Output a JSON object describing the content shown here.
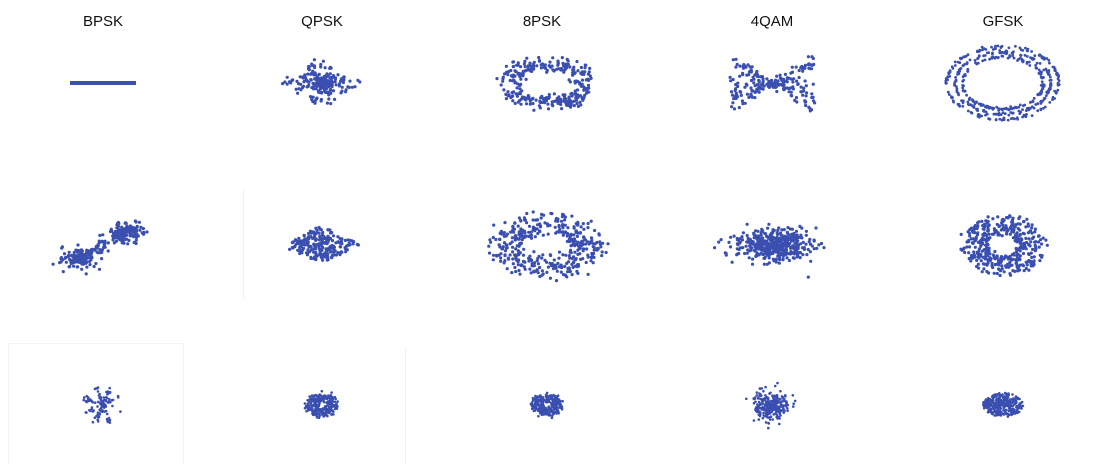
{
  "figure": {
    "columns": [
      "BPSK",
      "QPSK",
      "8PSK",
      "4QAM",
      "GFSK"
    ],
    "rows": 3,
    "point_color": "#3a4fb0",
    "panels": [
      [
        {
          "shape": "line"
        },
        {
          "shape": "cross-diamond"
        },
        {
          "shape": "swirl-ring"
        },
        {
          "shape": "bowtie"
        },
        {
          "shape": "concentric-ellipses"
        }
      ],
      [
        {
          "shape": "dumbbell"
        },
        {
          "shape": "dense-diamond"
        },
        {
          "shape": "noisy-ring"
        },
        {
          "shape": "dense-blob"
        },
        {
          "shape": "ring-with-hole"
        }
      ],
      [
        {
          "shape": "small-star"
        },
        {
          "shape": "small-ring"
        },
        {
          "shape": "small-ring"
        },
        {
          "shape": "small-cluster"
        },
        {
          "shape": "small-disc"
        }
      ]
    ]
  }
}
